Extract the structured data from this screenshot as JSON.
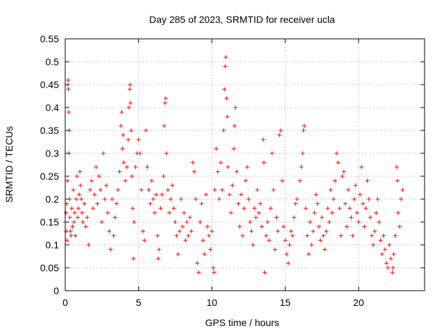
{
  "chart_data": {
    "type": "scatter",
    "title": "Day 285 of 2023, SRMTID for receiver ucla",
    "xlabel": "GPS time / hours",
    "ylabel": "SRMTID / TECUs",
    "xlim": [
      0,
      24.5
    ],
    "ylim": [
      0,
      0.55
    ],
    "xticks": [
      0,
      5,
      10,
      15,
      20
    ],
    "xtick_labels": [
      "0",
      "5",
      "10",
      "15",
      "20"
    ],
    "yticks": [
      0,
      0.05,
      0.1,
      0.15,
      0.2,
      0.25,
      0.3,
      0.35,
      0.4,
      0.45,
      0.5,
      0.55
    ],
    "ytick_labels": [
      "0",
      "0.05",
      "0.1",
      "0.15",
      "0.2",
      "0.25",
      "0.3",
      "0.35",
      "0.4",
      "0.45",
      "0.5",
      "0.55"
    ],
    "grid": true,
    "legend": "none",
    "marker": "plus",
    "color": "#ff0000",
    "series": [
      {
        "points": [
          [
            0.0,
            0.15
          ],
          [
            0.05,
            0.17
          ],
          [
            0.08,
            0.13
          ],
          [
            0.1,
            0.19
          ],
          [
            0.12,
            0.11
          ],
          [
            0.15,
            0.24
          ],
          [
            0.18,
            0.45
          ],
          [
            0.2,
            0.46
          ],
          [
            0.22,
            0.44
          ],
          [
            0.24,
            0.39
          ],
          [
            0.26,
            0.3
          ],
          [
            0.28,
            0.35
          ],
          [
            0.3,
            0.2
          ],
          [
            0.32,
            0.16
          ],
          [
            0.35,
            0.13
          ],
          [
            0.4,
            0.12
          ],
          [
            0.45,
            0.18
          ],
          [
            0.5,
            0.14
          ],
          [
            0.55,
            0.22
          ],
          [
            0.6,
            0.15
          ],
          [
            0.65,
            0.17
          ],
          [
            0.7,
            0.12
          ],
          [
            0.75,
            0.2
          ],
          [
            0.8,
            0.25
          ],
          [
            0.85,
            0.16
          ],
          [
            0.9,
            0.18
          ],
          [
            0.95,
            0.21
          ],
          [
            1.0,
            0.26
          ],
          [
            1.05,
            0.23
          ],
          [
            1.1,
            0.2
          ],
          [
            1.15,
            0.17
          ],
          [
            1.2,
            0.15
          ],
          [
            1.3,
            0.19
          ],
          [
            1.4,
            0.14
          ],
          [
            1.5,
            0.16
          ],
          [
            1.6,
            0.1
          ],
          [
            1.7,
            0.22
          ],
          [
            1.8,
            0.24
          ],
          [
            1.9,
            0.18
          ],
          [
            2.0,
            0.21
          ],
          [
            2.1,
            0.27
          ],
          [
            2.2,
            0.19
          ],
          [
            2.3,
            0.25
          ],
          [
            2.4,
            0.22
          ],
          [
            2.5,
            0.15
          ],
          [
            2.6,
            0.3
          ],
          [
            2.7,
            0.2
          ],
          [
            2.8,
            0.23
          ],
          [
            2.9,
            0.17
          ],
          [
            3.0,
            0.13
          ],
          [
            3.1,
            0.09
          ],
          [
            3.2,
            0.2
          ],
          [
            3.3,
            0.12
          ],
          [
            3.4,
            0.16
          ],
          [
            3.5,
            0.19
          ],
          [
            3.6,
            0.22
          ],
          [
            3.7,
            0.26
          ],
          [
            3.8,
            0.36
          ],
          [
            3.85,
            0.39
          ],
          [
            3.9,
            0.31
          ],
          [
            3.95,
            0.34
          ],
          [
            4.0,
            0.28
          ],
          [
            4.1,
            0.24
          ],
          [
            4.2,
            0.27
          ],
          [
            4.3,
            0.33
          ],
          [
            4.35,
            0.4
          ],
          [
            4.4,
            0.44
          ],
          [
            4.42,
            0.45
          ],
          [
            4.45,
            0.41
          ],
          [
            4.5,
            0.35
          ],
          [
            4.55,
            0.25
          ],
          [
            4.6,
            0.18
          ],
          [
            4.65,
            0.07
          ],
          [
            4.7,
            0.15
          ],
          [
            4.8,
            0.27
          ],
          [
            4.9,
            0.3
          ],
          [
            5.0,
            0.33
          ],
          [
            5.1,
            0.3
          ],
          [
            5.2,
            0.22
          ],
          [
            5.3,
            0.13
          ],
          [
            5.4,
            0.11
          ],
          [
            5.5,
            0.35
          ],
          [
            5.6,
            0.27
          ],
          [
            5.7,
            0.22
          ],
          [
            5.8,
            0.19
          ],
          [
            5.9,
            0.24
          ],
          [
            6.0,
            0.2
          ],
          [
            6.1,
            0.17
          ],
          [
            6.2,
            0.21
          ],
          [
            6.3,
            0.12
          ],
          [
            6.35,
            0.07
          ],
          [
            6.4,
            0.09
          ],
          [
            6.5,
            0.18
          ],
          [
            6.6,
            0.21
          ],
          [
            6.7,
            0.25
          ],
          [
            6.75,
            0.36
          ],
          [
            6.8,
            0.41
          ],
          [
            6.85,
            0.42
          ],
          [
            6.9,
            0.3
          ],
          [
            7.0,
            0.22
          ],
          [
            7.1,
            0.17
          ],
          [
            7.2,
            0.2
          ],
          [
            7.3,
            0.23
          ],
          [
            7.4,
            0.18
          ],
          [
            7.5,
            0.15
          ],
          [
            7.6,
            0.12
          ],
          [
            7.7,
            0.08
          ],
          [
            7.8,
            0.13
          ],
          [
            7.9,
            0.2
          ],
          [
            8.0,
            0.14
          ],
          [
            8.1,
            0.17
          ],
          [
            8.2,
            0.11
          ],
          [
            8.3,
            0.15
          ],
          [
            8.4,
            0.12
          ],
          [
            8.5,
            0.16
          ],
          [
            8.6,
            0.13
          ],
          [
            8.7,
            0.28
          ],
          [
            8.8,
            0.26
          ],
          [
            8.9,
            0.2
          ],
          [
            9.0,
            0.06
          ],
          [
            9.1,
            0.04
          ],
          [
            9.2,
            0.15
          ],
          [
            9.3,
            0.19
          ],
          [
            9.4,
            0.11
          ],
          [
            9.5,
            0.08
          ],
          [
            9.6,
            0.21
          ],
          [
            9.7,
            0.14
          ],
          [
            9.8,
            0.12
          ],
          [
            9.9,
            0.09
          ],
          [
            10.0,
            0.13
          ],
          [
            10.1,
            0.05
          ],
          [
            10.15,
            0.04
          ],
          [
            10.2,
            0.22
          ],
          [
            10.3,
            0.31
          ],
          [
            10.4,
            0.26
          ],
          [
            10.5,
            0.2
          ],
          [
            10.6,
            0.28
          ],
          [
            10.7,
            0.22
          ],
          [
            10.8,
            0.35
          ],
          [
            10.85,
            0.44
          ],
          [
            10.9,
            0.49
          ],
          [
            10.95,
            0.51
          ],
          [
            11.0,
            0.42
          ],
          [
            11.05,
            0.38
          ],
          [
            11.1,
            0.27
          ],
          [
            11.2,
            0.21
          ],
          [
            11.3,
            0.17
          ],
          [
            11.4,
            0.23
          ],
          [
            11.5,
            0.31
          ],
          [
            11.55,
            0.36
          ],
          [
            11.6,
            0.4
          ],
          [
            11.7,
            0.26
          ],
          [
            11.8,
            0.19
          ],
          [
            11.9,
            0.14
          ],
          [
            12.0,
            0.21
          ],
          [
            12.1,
            0.12
          ],
          [
            12.2,
            0.18
          ],
          [
            12.3,
            0.24
          ],
          [
            12.4,
            0.27
          ],
          [
            12.5,
            0.2
          ],
          [
            12.6,
            0.15
          ],
          [
            12.7,
            0.13
          ],
          [
            12.8,
            0.1
          ],
          [
            12.9,
            0.18
          ],
          [
            13.0,
            0.16
          ],
          [
            13.1,
            0.22
          ],
          [
            13.2,
            0.17
          ],
          [
            13.3,
            0.19
          ],
          [
            13.4,
            0.14
          ],
          [
            13.5,
            0.33
          ],
          [
            13.55,
            0.28
          ],
          [
            13.6,
            0.04
          ],
          [
            13.7,
            0.12
          ],
          [
            13.8,
            0.15
          ],
          [
            13.9,
            0.11
          ],
          [
            14.0,
            0.18
          ],
          [
            14.1,
            0.3
          ],
          [
            14.2,
            0.22
          ],
          [
            14.3,
            0.09
          ],
          [
            14.4,
            0.16
          ],
          [
            14.5,
            0.13
          ],
          [
            14.6,
            0.34
          ],
          [
            14.7,
            0.35
          ],
          [
            14.8,
            0.24
          ],
          [
            14.9,
            0.14
          ],
          [
            15.0,
            0.11
          ],
          [
            15.1,
            0.08
          ],
          [
            15.2,
            0.06
          ],
          [
            15.3,
            0.1
          ],
          [
            15.4,
            0.13
          ],
          [
            15.5,
            0.12
          ],
          [
            15.6,
            0.16
          ],
          [
            15.7,
            0.19
          ],
          [
            15.8,
            0.2
          ],
          [
            16.0,
            0.24
          ],
          [
            16.1,
            0.27
          ],
          [
            16.2,
            0.3
          ],
          [
            16.25,
            0.35
          ],
          [
            16.3,
            0.36
          ],
          [
            16.4,
            0.18
          ],
          [
            16.5,
            0.12
          ],
          [
            16.6,
            0.08
          ],
          [
            16.7,
            0.15
          ],
          [
            16.8,
            0.1
          ],
          [
            16.9,
            0.13
          ],
          [
            17.0,
            0.17
          ],
          [
            17.1,
            0.21
          ],
          [
            17.2,
            0.19
          ],
          [
            17.3,
            0.14
          ],
          [
            17.4,
            0.11
          ],
          [
            17.5,
            0.16
          ],
          [
            17.6,
            0.12
          ],
          [
            17.7,
            0.09
          ],
          [
            17.8,
            0.13
          ],
          [
            17.9,
            0.18
          ],
          [
            18.0,
            0.15
          ],
          [
            18.1,
            0.22
          ],
          [
            18.2,
            0.17
          ],
          [
            18.3,
            0.2
          ],
          [
            18.4,
            0.24
          ],
          [
            18.5,
            0.3
          ],
          [
            18.6,
            0.28
          ],
          [
            18.7,
            0.18
          ],
          [
            18.8,
            0.12
          ],
          [
            18.9,
            0.25
          ],
          [
            19.0,
            0.26
          ],
          [
            19.1,
            0.19
          ],
          [
            19.2,
            0.14
          ],
          [
            19.3,
            0.22
          ],
          [
            19.4,
            0.18
          ],
          [
            19.5,
            0.16
          ],
          [
            19.6,
            0.12
          ],
          [
            19.7,
            0.2
          ],
          [
            19.8,
            0.23
          ],
          [
            19.9,
            0.17
          ],
          [
            20.0,
            0.15
          ],
          [
            20.1,
            0.21
          ],
          [
            20.2,
            0.27
          ],
          [
            20.3,
            0.19
          ],
          [
            20.4,
            0.14
          ],
          [
            20.5,
            0.18
          ],
          [
            20.6,
            0.24
          ],
          [
            20.7,
            0.2
          ],
          [
            20.8,
            0.16
          ],
          [
            20.9,
            0.12
          ],
          [
            21.0,
            0.1
          ],
          [
            21.1,
            0.13
          ],
          [
            21.2,
            0.17
          ],
          [
            21.3,
            0.2
          ],
          [
            21.4,
            0.15
          ],
          [
            21.5,
            0.11
          ],
          [
            21.6,
            0.08
          ],
          [
            21.7,
            0.12
          ],
          [
            21.8,
            0.09
          ],
          [
            21.9,
            0.06
          ],
          [
            22.0,
            0.05
          ],
          [
            22.1,
            0.1
          ],
          [
            22.2,
            0.07
          ],
          [
            22.3,
            0.04
          ],
          [
            22.35,
            0.05
          ],
          [
            22.4,
            0.08
          ],
          [
            22.5,
            0.12
          ],
          [
            22.6,
            0.27
          ],
          [
            22.65,
            0.24
          ],
          [
            22.7,
            0.17
          ],
          [
            22.8,
            0.14
          ],
          [
            22.9,
            0.2
          ],
          [
            23.0,
            0.22
          ]
        ]
      }
    ]
  }
}
